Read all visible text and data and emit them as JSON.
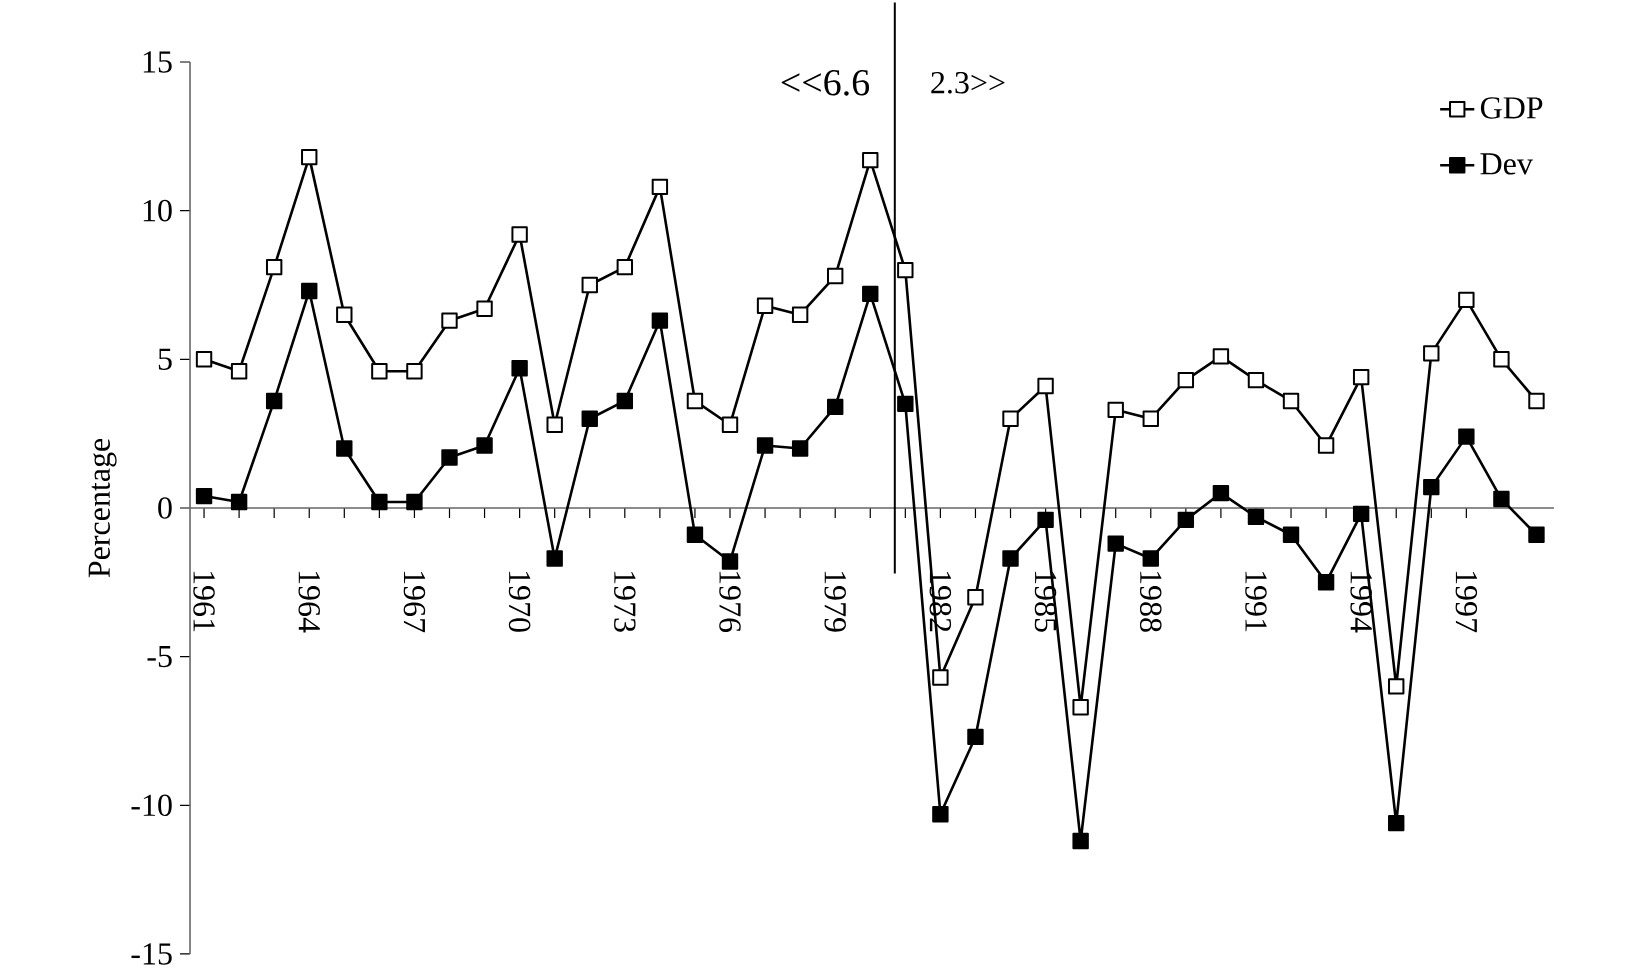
{
  "chart_data": {
    "type": "line",
    "ylabel": "Percentage",
    "x": [
      1961,
      1962,
      1963,
      1964,
      1965,
      1966,
      1967,
      1968,
      1969,
      1970,
      1971,
      1972,
      1973,
      1974,
      1975,
      1976,
      1977,
      1978,
      1979,
      1980,
      1981,
      1982,
      1983,
      1984,
      1985,
      1986,
      1987,
      1988,
      1989,
      1990,
      1991,
      1992,
      1993,
      1994,
      1995,
      1996,
      1997,
      1998,
      1999
    ],
    "series": [
      {
        "name": "GDP",
        "color": "#ffffff",
        "values": [
          5.0,
          4.6,
          8.1,
          11.8,
          6.5,
          4.6,
          4.6,
          6.3,
          6.7,
          9.2,
          2.8,
          7.5,
          8.1,
          10.8,
          3.6,
          2.8,
          6.8,
          6.5,
          7.8,
          11.7,
          8.0,
          -5.7,
          -3.0,
          3.0,
          4.1,
          -6.7,
          3.3,
          3.0,
          4.3,
          5.1,
          4.3,
          3.6,
          2.1,
          4.4,
          -6.0,
          5.2,
          7.0,
          5.0,
          3.6
        ]
      },
      {
        "name": "Dev",
        "color": "#000000",
        "values": [
          0.4,
          0.2,
          3.6,
          7.3,
          2.0,
          0.2,
          0.2,
          1.7,
          2.1,
          4.7,
          -1.7,
          3.0,
          3.6,
          6.3,
          -0.9,
          -1.8,
          2.1,
          2.0,
          3.4,
          7.2,
          3.5,
          -10.3,
          -7.7,
          -1.7,
          -0.4,
          -11.2,
          -1.2,
          -1.7,
          -0.4,
          0.5,
          -0.3,
          -0.9,
          -2.5,
          -0.2,
          -10.6,
          0.7,
          2.4,
          0.3,
          -0.9
        ]
      }
    ],
    "xlim": [
      1960.6,
      1999.5
    ],
    "xticks": [
      1961,
      1964,
      1967,
      1970,
      1973,
      1976,
      1979,
      1982,
      1985,
      1988,
      1991,
      1994,
      1997
    ],
    "ylim": [
      -15,
      15
    ],
    "yticks": [
      -15,
      -10,
      -5,
      0,
      5,
      10,
      15
    ],
    "ref_lines": [
      {
        "axis": "x",
        "value": 1980.7,
        "color": "#000000"
      }
    ],
    "annotations": [
      "<<6.6",
      "2.3>>"
    ],
    "legend": "top right",
    "marker": "square",
    "line_style": "solid",
    "grid": false
  }
}
